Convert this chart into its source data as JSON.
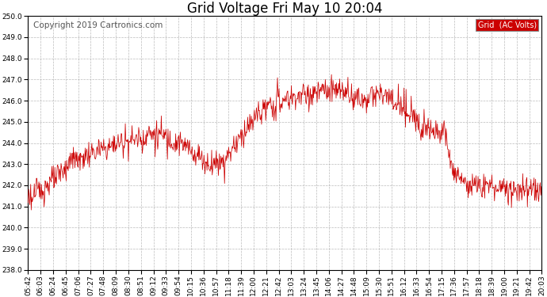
{
  "title": "Grid Voltage Fri May 10 20:04",
  "copyright": "Copyright 2019 Cartronics.com",
  "legend_label": "Grid  (AC Volts)",
  "legend_bg": "#cc0000",
  "legend_text_color": "#ffffff",
  "line_color": "#cc0000",
  "background_color": "#ffffff",
  "grid_color": "#aaaaaa",
  "ylim": [
    238.0,
    250.0
  ],
  "yticks": [
    238.0,
    239.0,
    240.0,
    241.0,
    242.0,
    243.0,
    244.0,
    245.0,
    246.0,
    247.0,
    248.0,
    249.0,
    250.0
  ],
  "x_labels": [
    "05:42",
    "06:03",
    "06:24",
    "06:45",
    "07:06",
    "07:27",
    "07:48",
    "08:09",
    "08:30",
    "08:51",
    "09:12",
    "09:33",
    "09:54",
    "10:15",
    "10:36",
    "10:57",
    "11:18",
    "11:39",
    "12:00",
    "12:21",
    "12:42",
    "13:03",
    "13:24",
    "13:45",
    "14:06",
    "14:27",
    "14:48",
    "15:09",
    "15:30",
    "15:51",
    "16:12",
    "16:33",
    "16:54",
    "17:15",
    "17:36",
    "17:57",
    "18:18",
    "18:39",
    "19:00",
    "19:21",
    "19:42",
    "20:03"
  ],
  "title_fontsize": 12,
  "tick_fontsize": 6.5,
  "copyright_fontsize": 7.5
}
